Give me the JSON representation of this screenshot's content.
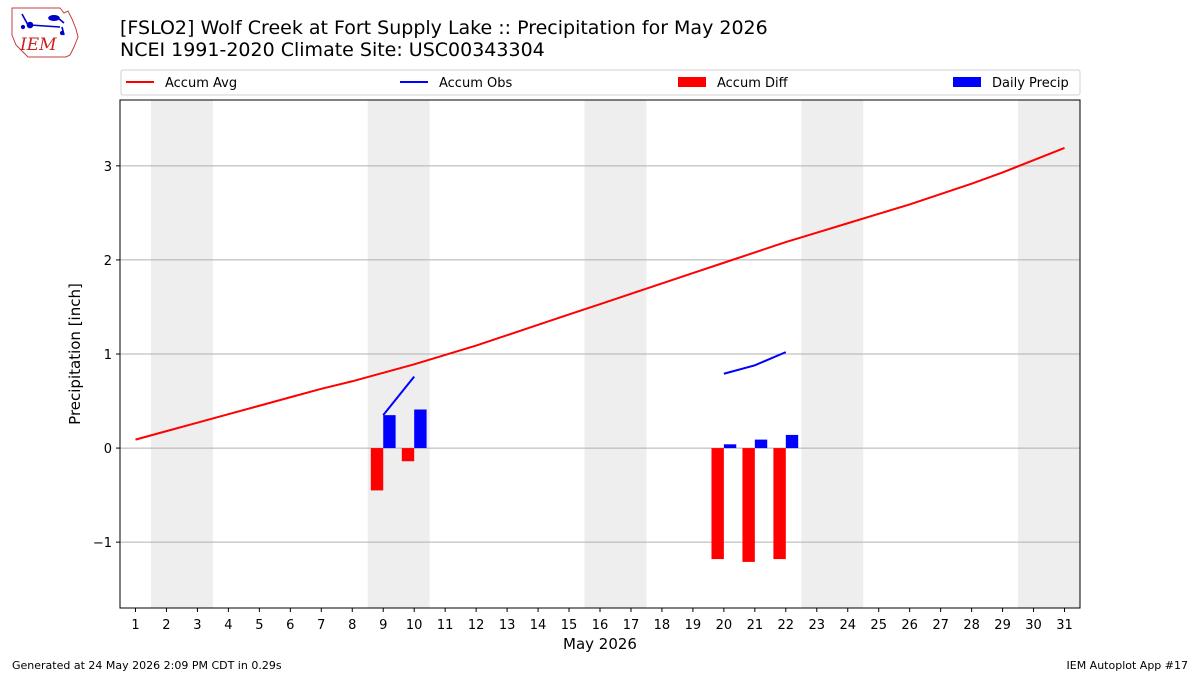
{
  "logo": {
    "text": "IEM"
  },
  "title": {
    "line1": "[FSLO2] Wolf Creek at Fort Supply Lake :: Precipitation for May 2026",
    "line2": "NCEI 1991-2020 Climate Site: USC00343304"
  },
  "footer": {
    "left": "Generated at 24 May 2026 2:09 PM CDT in 0.29s",
    "right": "IEM Autoplot App #17"
  },
  "chart_data": {
    "type": "bar",
    "xlabel": "May 2026",
    "ylabel": "Precipitation [inch]",
    "xlim": [
      0.5,
      31.5
    ],
    "ylim": [
      -1.7,
      3.7
    ],
    "yticks": [
      -1,
      0,
      1,
      2,
      3
    ],
    "ytick_labels": [
      "−1",
      "0",
      "1",
      "2",
      "3"
    ],
    "x_ticks": [
      1,
      2,
      3,
      4,
      5,
      6,
      7,
      8,
      9,
      10,
      11,
      12,
      13,
      14,
      15,
      16,
      17,
      18,
      19,
      20,
      21,
      22,
      23,
      24,
      25,
      26,
      27,
      28,
      29,
      30,
      31
    ],
    "grid": "horizontal",
    "legend_position": "top",
    "weekend_shading": [
      [
        1.5,
        3.5
      ],
      [
        8.5,
        10.5
      ],
      [
        15.5,
        17.5
      ],
      [
        22.5,
        24.5
      ],
      [
        29.5,
        31.5
      ]
    ],
    "series": [
      {
        "name": "Accum Avg",
        "kind": "line",
        "color": "#ff0000",
        "x": [
          1,
          2,
          3,
          4,
          5,
          6,
          7,
          8,
          9,
          10,
          11,
          12,
          13,
          14,
          15,
          16,
          17,
          18,
          19,
          20,
          21,
          22,
          23,
          24,
          25,
          26,
          27,
          28,
          29,
          30,
          31
        ],
        "values": [
          0.09,
          0.18,
          0.27,
          0.36,
          0.45,
          0.54,
          0.63,
          0.71,
          0.8,
          0.89,
          0.99,
          1.09,
          1.2,
          1.31,
          1.42,
          1.53,
          1.64,
          1.75,
          1.86,
          1.97,
          2.08,
          2.19,
          2.29,
          2.39,
          2.49,
          2.59,
          2.7,
          2.81,
          2.93,
          3.06,
          3.19
        ]
      },
      {
        "name": "Accum Obs",
        "kind": "line",
        "color": "#0000ff",
        "segments": [
          {
            "x": [
              9,
              10
            ],
            "values": [
              0.35,
              0.76
            ]
          },
          {
            "x": [
              20,
              21,
              22
            ],
            "values": [
              0.79,
              0.88,
              1.02
            ]
          }
        ]
      },
      {
        "name": "Accum Diff",
        "kind": "bar",
        "color": "#ff0000",
        "x": [
          9,
          10,
          20,
          21,
          22
        ],
        "values": [
          -0.45,
          -0.14,
          -1.18,
          -1.21,
          -1.18
        ]
      },
      {
        "name": "Daily Precip",
        "kind": "bar",
        "color": "#0000ff",
        "x": [
          9,
          10,
          20,
          21,
          22
        ],
        "values": [
          0.35,
          0.41,
          0.04,
          0.09,
          0.14
        ]
      }
    ]
  }
}
